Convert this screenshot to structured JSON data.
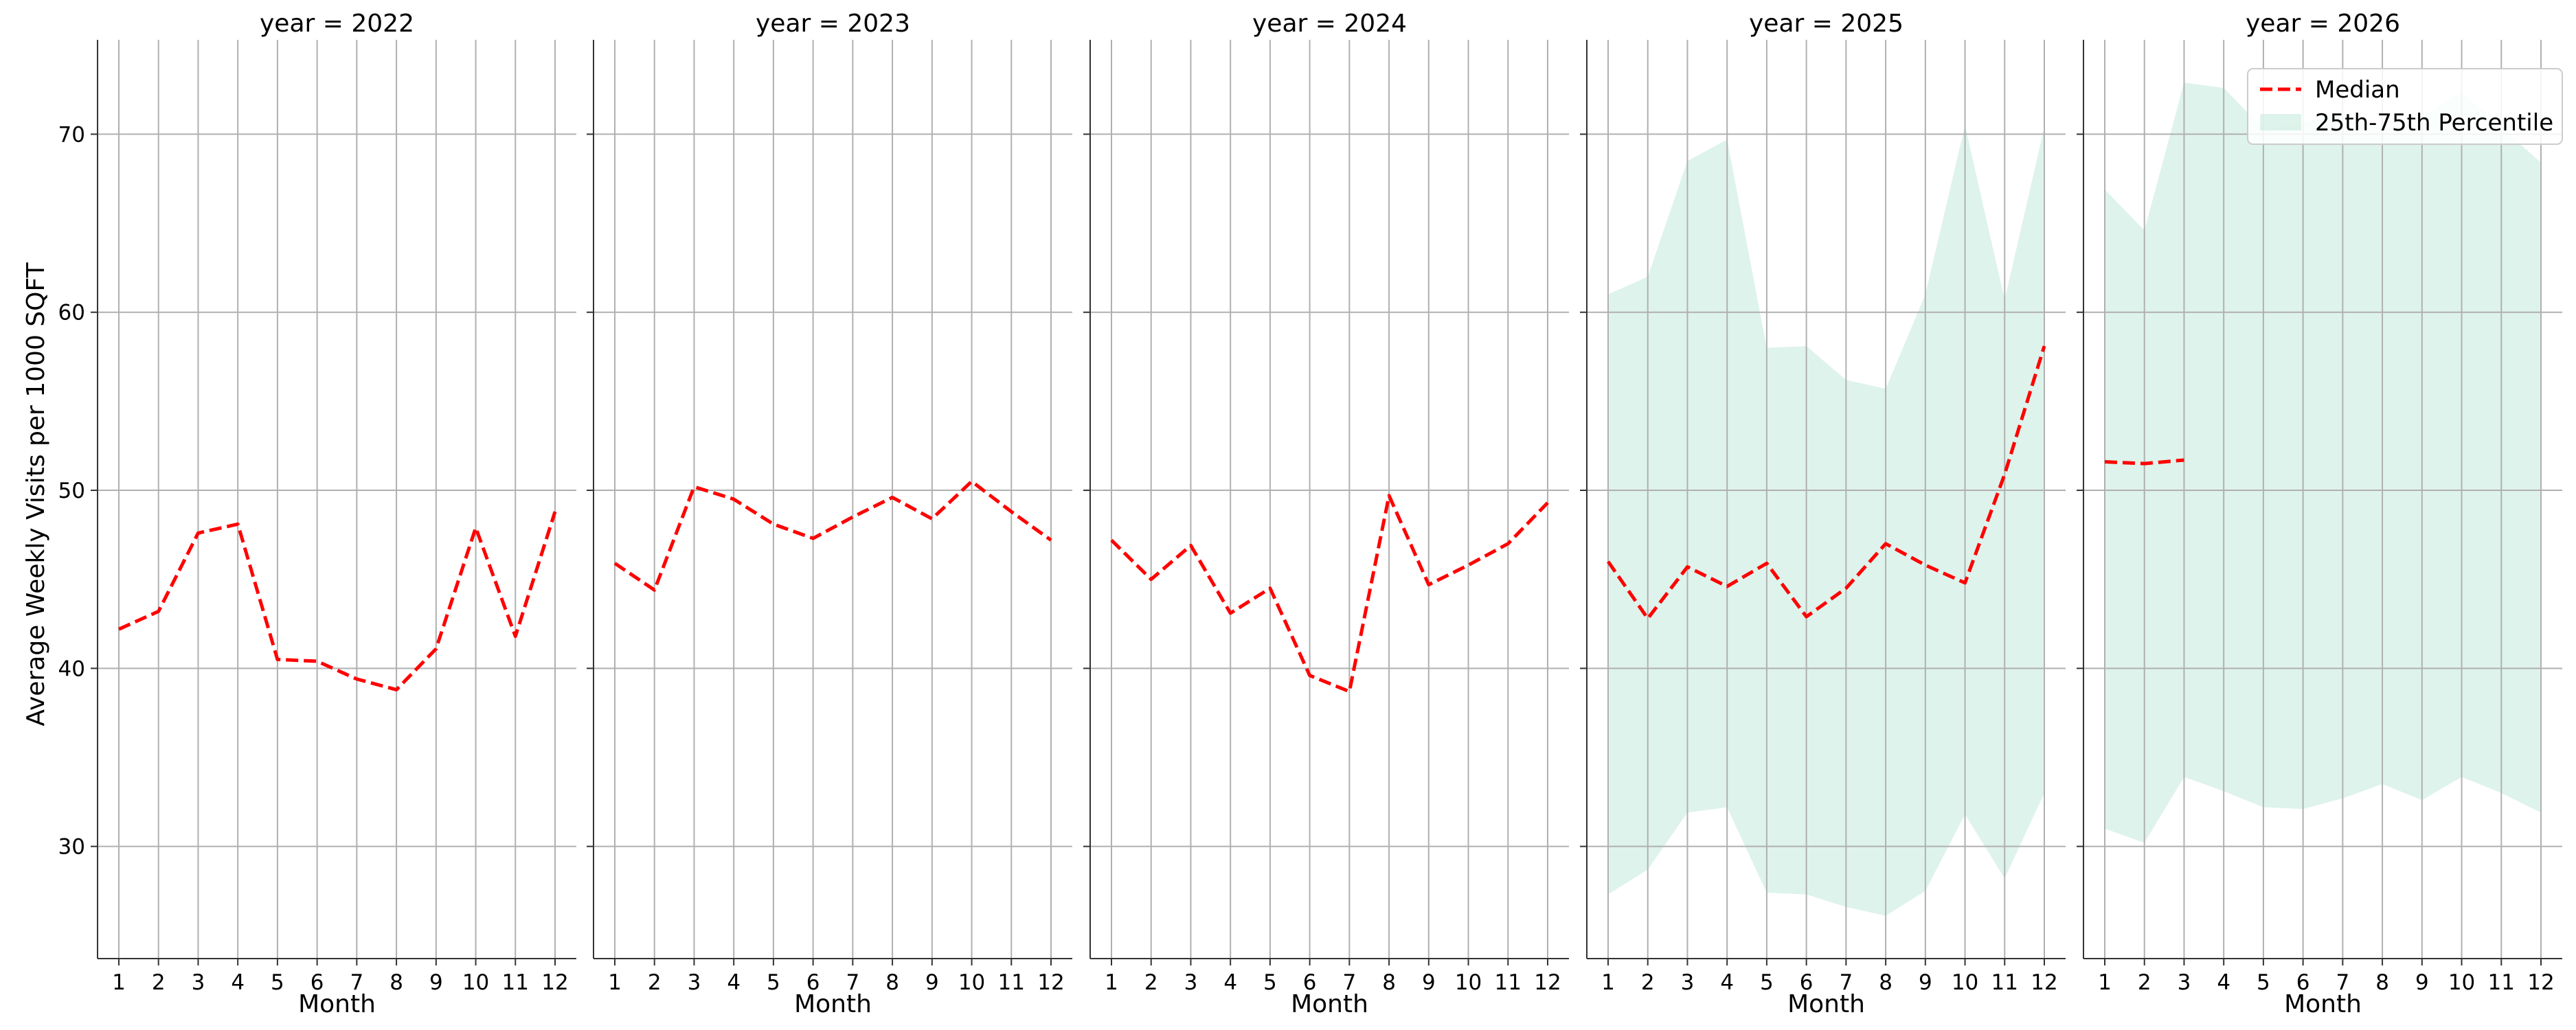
{
  "chart_data": {
    "type": "line",
    "facet_prefix": "year = ",
    "facets": [
      {
        "year": "2022",
        "title": "year = 2022",
        "median": [
          42.2,
          43.2,
          47.6,
          48.1,
          40.5,
          40.4,
          39.4,
          38.8,
          41.1,
          47.9,
          41.8,
          48.8
        ],
        "band": null
      },
      {
        "year": "2023",
        "title": "year = 2023",
        "median": [
          45.9,
          44.4,
          50.2,
          49.5,
          48.1,
          47.3,
          48.5,
          49.6,
          48.4,
          50.5,
          48.8,
          47.2
        ],
        "band": null
      },
      {
        "year": "2024",
        "title": "year = 2024",
        "median": [
          47.2,
          45.0,
          46.9,
          43.1,
          44.5,
          39.6,
          38.7,
          49.7,
          44.7,
          45.8,
          47.0,
          49.3
        ],
        "band": null
      },
      {
        "year": "2025",
        "title": "year = 2025",
        "median": [
          46.0,
          42.8,
          45.7,
          44.6,
          45.9,
          42.9,
          44.5,
          47.0,
          45.8,
          44.8,
          50.9,
          58.1
        ],
        "band": {
          "p25": [
            27.3,
            28.7,
            31.9,
            32.2,
            27.4,
            27.3,
            26.6,
            26.1,
            27.5,
            31.8,
            28.2,
            33.0
          ],
          "p75": [
            61.0,
            62.0,
            68.5,
            69.7,
            58.0,
            58.1,
            56.2,
            55.7,
            61.0,
            70.5,
            60.7,
            70.4
          ]
        }
      },
      {
        "year": "2026",
        "title": "year = 2026",
        "median": [
          51.6,
          51.5,
          51.7,
          null,
          null,
          null,
          null,
          null,
          null,
          null,
          null,
          null
        ],
        "band": {
          "p25": [
            31.0,
            30.2,
            33.9,
            33.1,
            32.2,
            32.1,
            32.7,
            33.5,
            32.6,
            33.9,
            33.0,
            31.9
          ],
          "p75": [
            66.9,
            64.6,
            72.9,
            72.6,
            70.3,
            70.6,
            71.3,
            70.3,
            71.0,
            72.4,
            70.4,
            68.4
          ]
        }
      }
    ],
    "x": [
      1,
      2,
      3,
      4,
      5,
      6,
      7,
      8,
      9,
      10,
      11,
      12
    ],
    "x_tick_labels": [
      "1",
      "2",
      "3",
      "4",
      "5",
      "6",
      "7",
      "8",
      "9",
      "10",
      "11",
      "12"
    ],
    "xlabel": "Month",
    "ylabel": "Average Weekly Visits per 1000 SQFT",
    "ylim": [
      23.7,
      75.3
    ],
    "yticks": [
      30,
      40,
      50,
      60,
      70
    ],
    "y_tick_labels": [
      "30",
      "40",
      "50",
      "60",
      "70"
    ],
    "grid": true,
    "shared_y": true,
    "series": [
      {
        "name": "Median",
        "key": "median",
        "style": "dashed",
        "color": "#ff0000"
      },
      {
        "name": "25th-75th Percentile",
        "key": "band",
        "style": "fill",
        "color": "#ccece1"
      }
    ],
    "legend": {
      "position": "top-right",
      "panel": "2026",
      "entries": [
        "Median",
        "25th-75th Percentile"
      ]
    }
  }
}
